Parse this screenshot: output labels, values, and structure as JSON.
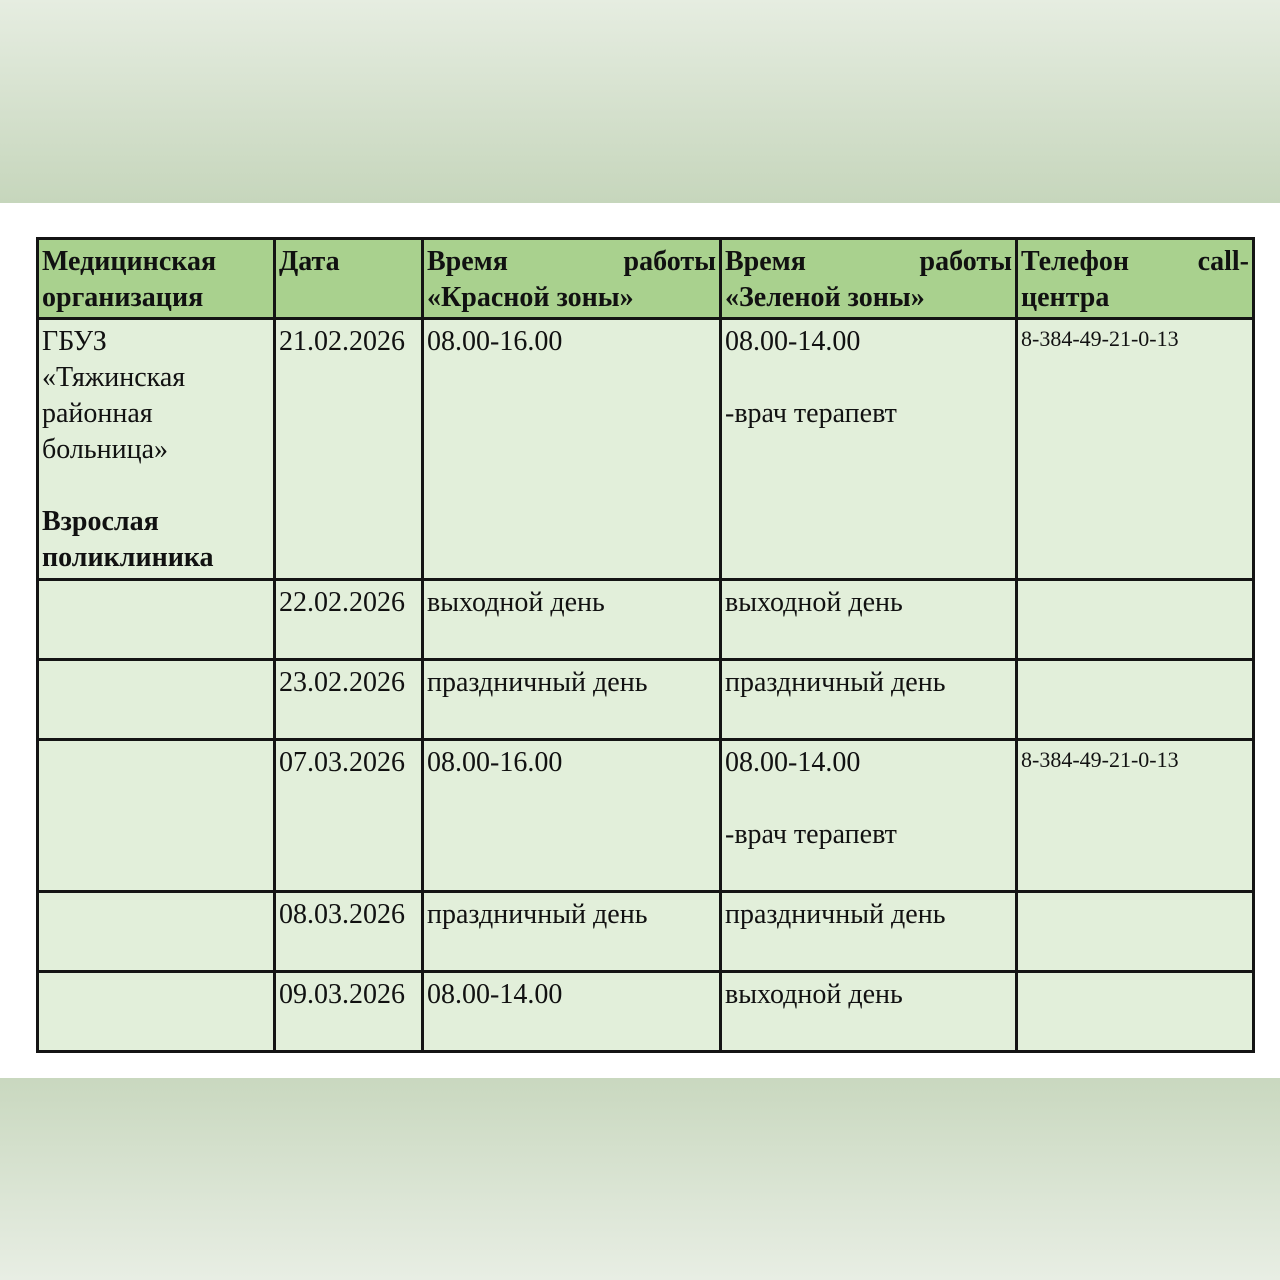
{
  "headers": [
    "Медицинская организация",
    "Дата",
    "Время работы «Красной зоны»",
    "Время работы «Зеленой зоны»",
    "Телефон call-центра"
  ],
  "organization": {
    "lines": [
      "ГБУЗ",
      "«Тяжинская",
      "районная",
      "больница»"
    ],
    "department": "Взрослая поликлиника"
  },
  "rows": [
    {
      "date": "21.02.2026",
      "red": "08.00-16.00",
      "green": "08.00-14.00",
      "green_note": "-врач терапевт",
      "phone": "8-384-49-21-0-13"
    },
    {
      "date": "22.02.2026",
      "red": "выходной день",
      "green": "выходной день",
      "phone": ""
    },
    {
      "date": "23.02.2026",
      "red": "праздничный день",
      "green": "праздничный день",
      "phone": ""
    },
    {
      "date": "07.03.2026",
      "red": "08.00-16.00",
      "green": "08.00-14.00",
      "green_note": "-врач терапевт",
      "phone": "8-384-49-21-0-13"
    },
    {
      "date": "08.03.2026",
      "red": "праздничный день",
      "green": "праздничный день",
      "phone": ""
    },
    {
      "date": "09.03.2026",
      "red": "08.00-14.00",
      "green": "выходной день",
      "phone": ""
    }
  ],
  "colors": {
    "header_bg": "#a9d18e",
    "cell_bg": "#e2efda",
    "border": "#141414"
  }
}
